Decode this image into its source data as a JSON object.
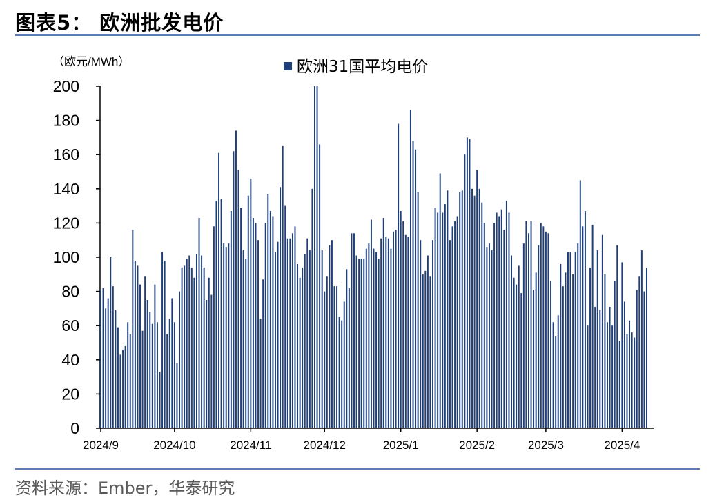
{
  "header": {
    "title": "图表5： 欧洲批发电价"
  },
  "footer": {
    "source": "资料来源：Ember，华泰研究"
  },
  "colors": {
    "bar": "#1f3f7a",
    "rule": "#5a7db5",
    "axis": "#000000"
  },
  "chart_data": {
    "type": "bar",
    "ylabel": "（欧元/MWh）",
    "ylim": [
      0,
      200
    ],
    "yticks": [
      0,
      20,
      40,
      60,
      80,
      100,
      120,
      140,
      160,
      180,
      200
    ],
    "xtick_labels": [
      "2024/9",
      "2024/10",
      "2024/11",
      "2024/12",
      "2025/1",
      "2025/2",
      "2025/3",
      "2025/4"
    ],
    "xtick_positions": [
      0,
      30,
      61,
      91,
      122,
      153,
      181,
      212
    ],
    "legend": {
      "label": "欧洲31国平均电价",
      "position": "top-center"
    },
    "x_start": "2024-09-01",
    "values": [
      81,
      82,
      70,
      76,
      100,
      83,
      69,
      59,
      43,
      46,
      48,
      62,
      55,
      116,
      98,
      95,
      84,
      57,
      89,
      75,
      68,
      61,
      84,
      62,
      33,
      103,
      98,
      55,
      64,
      76,
      62,
      38,
      80,
      94,
      95,
      99,
      101,
      94,
      88,
      102,
      123,
      101,
      94,
      75,
      88,
      78,
      118,
      133,
      161,
      134,
      108,
      106,
      108,
      127,
      162,
      174,
      151,
      129,
      104,
      99,
      136,
      146,
      123,
      120,
      110,
      64,
      87,
      120,
      137,
      127,
      124,
      103,
      109,
      141,
      165,
      130,
      111,
      111,
      114,
      118,
      96,
      88,
      94,
      102,
      111,
      104,
      140,
      200,
      200,
      166,
      104,
      80,
      89,
      107,
      110,
      83,
      83,
      65,
      63,
      74,
      93,
      82,
      114,
      114,
      101,
      99,
      99,
      99,
      105,
      108,
      122,
      105,
      103,
      99,
      111,
      123,
      112,
      111,
      105,
      115,
      116,
      178,
      127,
      121,
      113,
      112,
      186,
      168,
      163,
      138,
      110,
      90,
      92,
      101,
      89,
      110,
      129,
      126,
      149,
      126,
      131,
      139,
      110,
      118,
      121,
      124,
      138,
      139,
      160,
      170,
      169,
      140,
      136,
      151,
      140,
      132,
      120,
      106,
      108,
      104,
      120,
      126,
      124,
      128,
      116,
      133,
      126,
      101,
      88,
      84,
      95,
      79,
      108,
      121,
      114,
      121,
      81,
      91,
      107,
      120,
      118,
      115,
      114,
      86,
      62,
      54,
      66,
      96,
      83,
      91,
      103,
      103,
      90,
      103,
      108,
      145,
      118,
      127,
      60,
      94,
      119,
      71,
      104,
      69,
      113,
      90,
      62,
      71,
      60,
      86,
      107,
      51,
      97,
      74,
      55,
      63,
      56,
      53,
      81,
      89,
      104,
      80,
      94
    ]
  }
}
